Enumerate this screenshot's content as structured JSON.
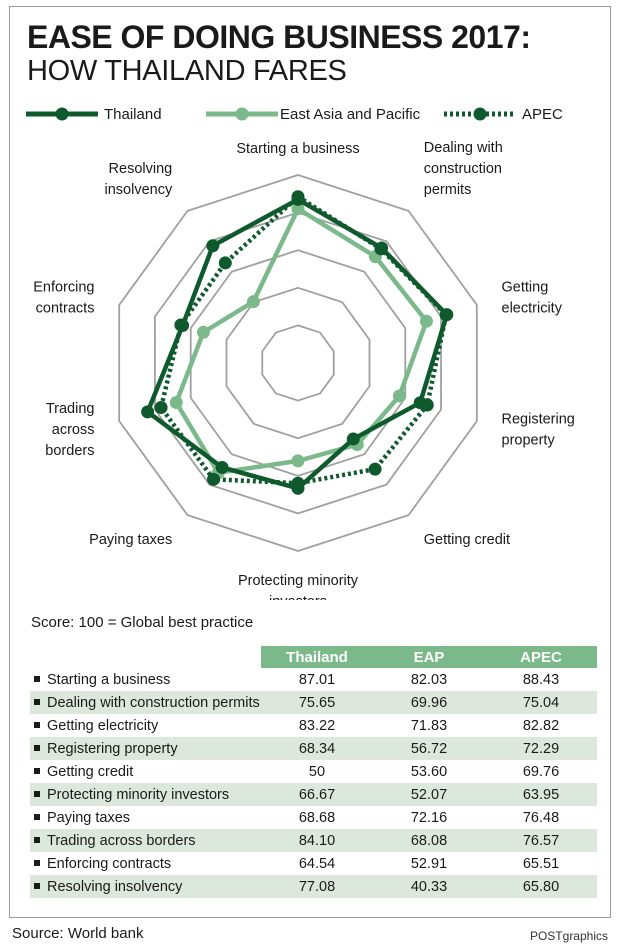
{
  "title_line1": "EASE OF DOING BUSINESS 2017:",
  "title_line2": "HOW THAILAND FARES",
  "legend": {
    "thailand": "Thailand",
    "eap": "East Asia and Pacific",
    "apec": "APEC"
  },
  "note": "Score: 100 = Global best practice",
  "table": {
    "headers": [
      "Thailand",
      "EAP",
      "APEC"
    ],
    "rows": [
      {
        "name": "Starting a business",
        "values": [
          "87.01",
          "82.03",
          "88.43"
        ]
      },
      {
        "name": "Dealing with construction permits",
        "values": [
          "75.65",
          "69.96",
          "75.04"
        ]
      },
      {
        "name": "Getting electricity",
        "values": [
          "83.22",
          "71.83",
          "82.82"
        ]
      },
      {
        "name": "Registering property",
        "values": [
          "68.34",
          "56.72",
          "72.29"
        ]
      },
      {
        "name": "Getting credit",
        "values": [
          "50",
          "53.60",
          "69.76"
        ]
      },
      {
        "name": "Protecting minority investors",
        "values": [
          "66.67",
          "52.07",
          "63.95"
        ]
      },
      {
        "name": "Paying taxes",
        "values": [
          "68.68",
          "72.16",
          "76.48"
        ]
      },
      {
        "name": "Trading across borders",
        "values": [
          "84.10",
          "68.08",
          "76.57"
        ]
      },
      {
        "name": "Enforcing contracts",
        "values": [
          "64.54",
          "52.91",
          "65.51"
        ]
      },
      {
        "name": "Resolving insolvency",
        "values": [
          "77.08",
          "40.33",
          "65.80"
        ]
      }
    ]
  },
  "source": "Source: World bank",
  "credit": "POSTgraphics",
  "colors": {
    "thailand": "#0f5a2c",
    "eap": "#7bb88a",
    "apec": "#0f5a2c",
    "grid": "#a0a0a0",
    "table_header": "#7bb88a",
    "row_shade": "#dde8dc"
  },
  "chart_data": {
    "type": "radar",
    "title": "EASE OF DOING BUSINESS 2017: HOW THAILAND FARES",
    "rlim": [
      0,
      100
    ],
    "grid_rings": 5,
    "categories": [
      "Starting a business",
      "Dealing with construction permits",
      "Getting electricity",
      "Registering property",
      "Getting credit",
      "Protecting minority investors",
      "Paying taxes",
      "Trading across borders",
      "Enforcing contracts",
      "Resolving insolvency"
    ],
    "axis_labels": [
      [
        "Starting a business"
      ],
      [
        "Dealing with",
        "construction",
        "permits"
      ],
      [
        "Getting",
        "electricity"
      ],
      [
        "Registering",
        "property"
      ],
      [
        "Getting credit"
      ],
      [
        "Protecting minority",
        "investors"
      ],
      [
        "Paying taxes"
      ],
      [
        "Trading",
        "across",
        "borders"
      ],
      [
        "Enforcing",
        "contracts"
      ],
      [
        "Resolving",
        "insolvency"
      ]
    ],
    "series": [
      {
        "name": "Thailand",
        "style": "solid-dark",
        "values": [
          87.01,
          75.65,
          83.22,
          68.34,
          50,
          66.67,
          68.68,
          84.1,
          64.54,
          77.08
        ]
      },
      {
        "name": "East Asia and Pacific",
        "style": "solid-light",
        "values": [
          82.03,
          69.96,
          71.83,
          56.72,
          53.6,
          52.07,
          72.16,
          68.08,
          52.91,
          40.33
        ]
      },
      {
        "name": "APEC",
        "style": "dotted-dark",
        "values": [
          88.43,
          75.04,
          82.82,
          72.29,
          69.76,
          63.95,
          76.48,
          76.57,
          65.51,
          65.8
        ]
      }
    ]
  }
}
